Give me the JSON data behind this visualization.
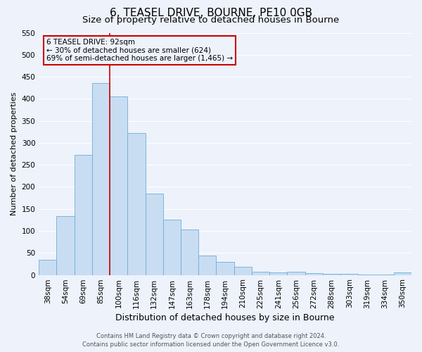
{
  "title": "6, TEASEL DRIVE, BOURNE, PE10 0GB",
  "subtitle": "Size of property relative to detached houses in Bourne",
  "xlabel": "Distribution of detached houses by size in Bourne",
  "ylabel": "Number of detached properties",
  "bar_labels": [
    "38sqm",
    "54sqm",
    "69sqm",
    "85sqm",
    "100sqm",
    "116sqm",
    "132sqm",
    "147sqm",
    "163sqm",
    "178sqm",
    "194sqm",
    "210sqm",
    "225sqm",
    "241sqm",
    "256sqm",
    "272sqm",
    "288sqm",
    "303sqm",
    "319sqm",
    "334sqm",
    "350sqm"
  ],
  "bar_values": [
    35,
    133,
    272,
    435,
    406,
    322,
    184,
    125,
    104,
    44,
    30,
    19,
    7,
    5,
    8,
    4,
    3,
    2,
    1,
    1,
    6
  ],
  "bar_color": "#c9ddf2",
  "bar_edge_color": "#6baed6",
  "vline_x_idx": 3,
  "vline_color": "#cc0000",
  "annotation_title": "6 TEASEL DRIVE: 92sqm",
  "annotation_line1": "← 30% of detached houses are smaller (624)",
  "annotation_line2": "69% of semi-detached houses are larger (1,465) →",
  "annotation_box_edgecolor": "#cc0000",
  "ylim": [
    0,
    550
  ],
  "yticks": [
    0,
    50,
    100,
    150,
    200,
    250,
    300,
    350,
    400,
    450,
    500,
    550
  ],
  "background_color": "#edf2fb",
  "footer_line1": "Contains HM Land Registry data © Crown copyright and database right 2024.",
  "footer_line2": "Contains public sector information licensed under the Open Government Licence v3.0.",
  "grid_color": "#ffffff",
  "title_fontsize": 11,
  "subtitle_fontsize": 9.5,
  "xlabel_fontsize": 9,
  "ylabel_fontsize": 8,
  "tick_fontsize": 7.5,
  "footer_fontsize": 6
}
